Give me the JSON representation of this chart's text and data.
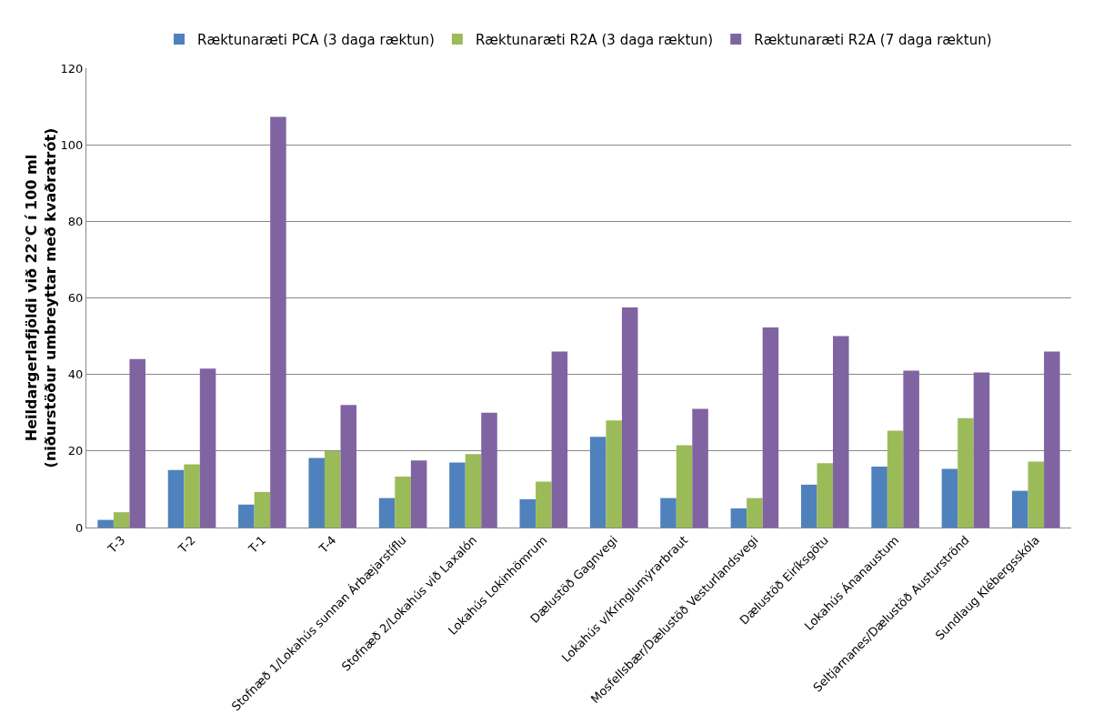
{
  "chart_data": {
    "type": "bar",
    "ylabel": "Heildargerlafjöldi við 22°C í 100 ml\n(niðurstöður umbreyttar með kvaðratrót)",
    "categories": [
      "T-3",
      "T-2",
      "T-1",
      "T-4",
      "Stofnæð 1/Lokahús sunnan Árbæjarstíflu",
      "Stofnæð 2/Lokahús við Laxalón",
      "Lokahús Lokinhömrum",
      "Dælustöð Gagnvegi",
      "Lokahús v/Kringlumýrarbraut",
      "Mosfellsbær/Dælustöð Vesturlandsvegi",
      "Dælustöð Eiríksgötu",
      "Lokahús Ánanaustum",
      "Seltjarnanes/Dælustöð Austurströnd",
      "Sundlaug Klébergsskóla"
    ],
    "series": [
      {
        "name": "Ræktunaræti PCA (3 daga ræktun)",
        "color": "#4f81bd",
        "values": [
          2,
          15,
          6,
          18.2,
          7.7,
          17,
          7.4,
          23.7,
          7.7,
          5,
          11.2,
          15.9,
          15.3,
          9.6
        ]
      },
      {
        "name": "Ræktunaræti R2A (3 daga ræktun)",
        "color": "#9bbb59",
        "values": [
          4,
          16.5,
          9.3,
          20,
          13.3,
          19.2,
          12,
          28,
          21.5,
          7.7,
          16.8,
          25.3,
          28.6,
          17.2
        ]
      },
      {
        "name": "Ræktunaræti R2A (7 daga ræktun)",
        "color": "#8064a2",
        "values": [
          44,
          41.5,
          107.3,
          32,
          17.5,
          30,
          46,
          57.5,
          31,
          52.3,
          50,
          41,
          40.5,
          46
        ]
      }
    ],
    "ylim": [
      0,
      120
    ],
    "yticks": [
      0,
      20,
      40,
      60,
      80,
      100,
      120
    ],
    "grid": "y",
    "legend": "top"
  }
}
